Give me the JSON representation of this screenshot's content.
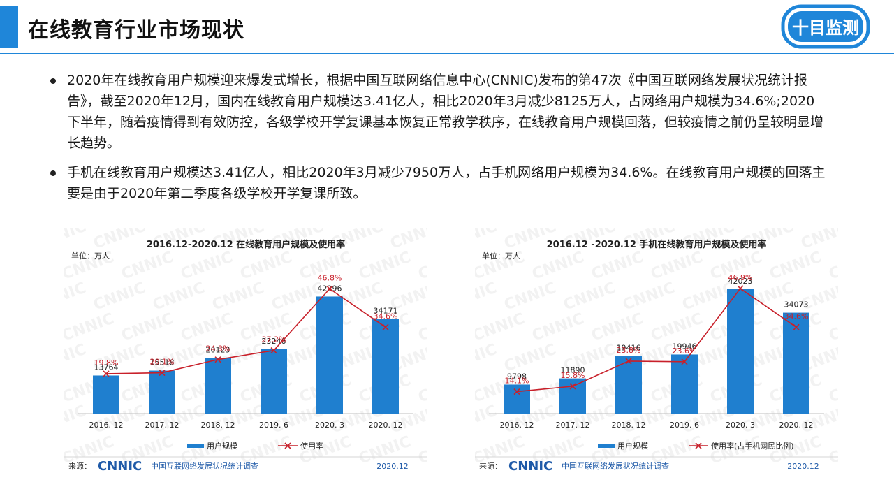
{
  "header": {
    "title": "在线教育行业市场现状",
    "logo_text": "十目监测"
  },
  "bullets": [
    "2020年在线教育用户规模迎来爆发式增长，根据中国互联网络信息中心(CNNIC)发布的第47次《中国互联网络发展状况统计报告》，截至2020年12月，国内在线教育用户规模达3.41亿人，相比2020年3月减少8125万人，占网络用户规模为34.6%;2020下半年，随着疫情得到有效防控，各级学校开学复课基本恢复正常教学秩序，在线教育用户规模回落，但较疫情之前仍呈较明显增长趋势。",
    "手机在线教育用户规模达3.41亿人，相比2020年3月减少7950万人，占手机网络用户规模为34.6%。在线教育用户规模的回落主要是由于2020年第二季度各级学校开学复课所致。"
  ],
  "chart_data": [
    {
      "type": "bar",
      "title": "2016.12-2020.12 在线教育用户规模及使用率",
      "unit_label": "单位：万人",
      "categories": [
        "2016. 12",
        "2017. 12",
        "2018. 12",
        "2019. 6",
        "2020. 3",
        "2020. 12"
      ],
      "series": [
        {
          "name": "用户规模",
          "kind": "bar",
          "values": [
            13764,
            15518,
            20123,
            23246,
            42296,
            34171
          ],
          "labels": [
            "13764",
            "15518",
            "20123",
            "23246",
            "42296",
            "34171"
          ],
          "color": "#1f7fcf"
        },
        {
          "name": "使用率",
          "kind": "line",
          "values": [
            19.8,
            20.1,
            24.3,
            27.2,
            46.8,
            34.6
          ],
          "labels": [
            "19.8%",
            "20.1%",
            "24.3%",
            "27.2%",
            "46.8%",
            "34.6%"
          ],
          "color": "#c8202a"
        }
      ],
      "bar_max": 52000,
      "line_range": [
        0,
        100
      ],
      "legend_position": "bottom",
      "source_prefix": "来源：",
      "source_brand": "CNNIC",
      "source_name": "中国互联网络发展状况统计调查",
      "source_date": "2020.12",
      "watermark": "CNNIC"
    },
    {
      "type": "bar",
      "title": "2016.12 -2020.12 手机在线教育用户规模及使用率",
      "unit_label": "单位：万人",
      "categories": [
        "2016. 12",
        "2017. 12",
        "2018. 12",
        "2019. 6",
        "2020. 3",
        "2020. 12"
      ],
      "series": [
        {
          "name": "用户规模",
          "kind": "bar",
          "values": [
            9798,
            11890,
            19416,
            19946,
            42023,
            34073
          ],
          "labels": [
            "9798",
            "11890",
            "19416",
            "19946",
            "42023",
            "34073"
          ],
          "color": "#1f7fcf"
        },
        {
          "name": "使用率(占手机网民比例)",
          "kind": "line",
          "values": [
            14.1,
            15.8,
            23.8,
            23.6,
            46.9,
            34.6
          ],
          "labels": [
            "14.1%",
            "15.8%",
            "23.8%",
            "23.6%",
            "46.9%",
            "34.6%"
          ],
          "color": "#c8202a"
        }
      ],
      "bar_max": 48600,
      "line_range": [
        0,
        100
      ],
      "legend_position": "bottom",
      "source_prefix": "来源：",
      "source_brand": "CNNIC",
      "source_name": "中国互联网络发展状况统计调查",
      "source_date": "2020.12",
      "watermark": "CNNIC"
    }
  ],
  "colors": {
    "accent": "#1f86d9",
    "bar": "#1f7fcf",
    "line": "#c8202a"
  }
}
